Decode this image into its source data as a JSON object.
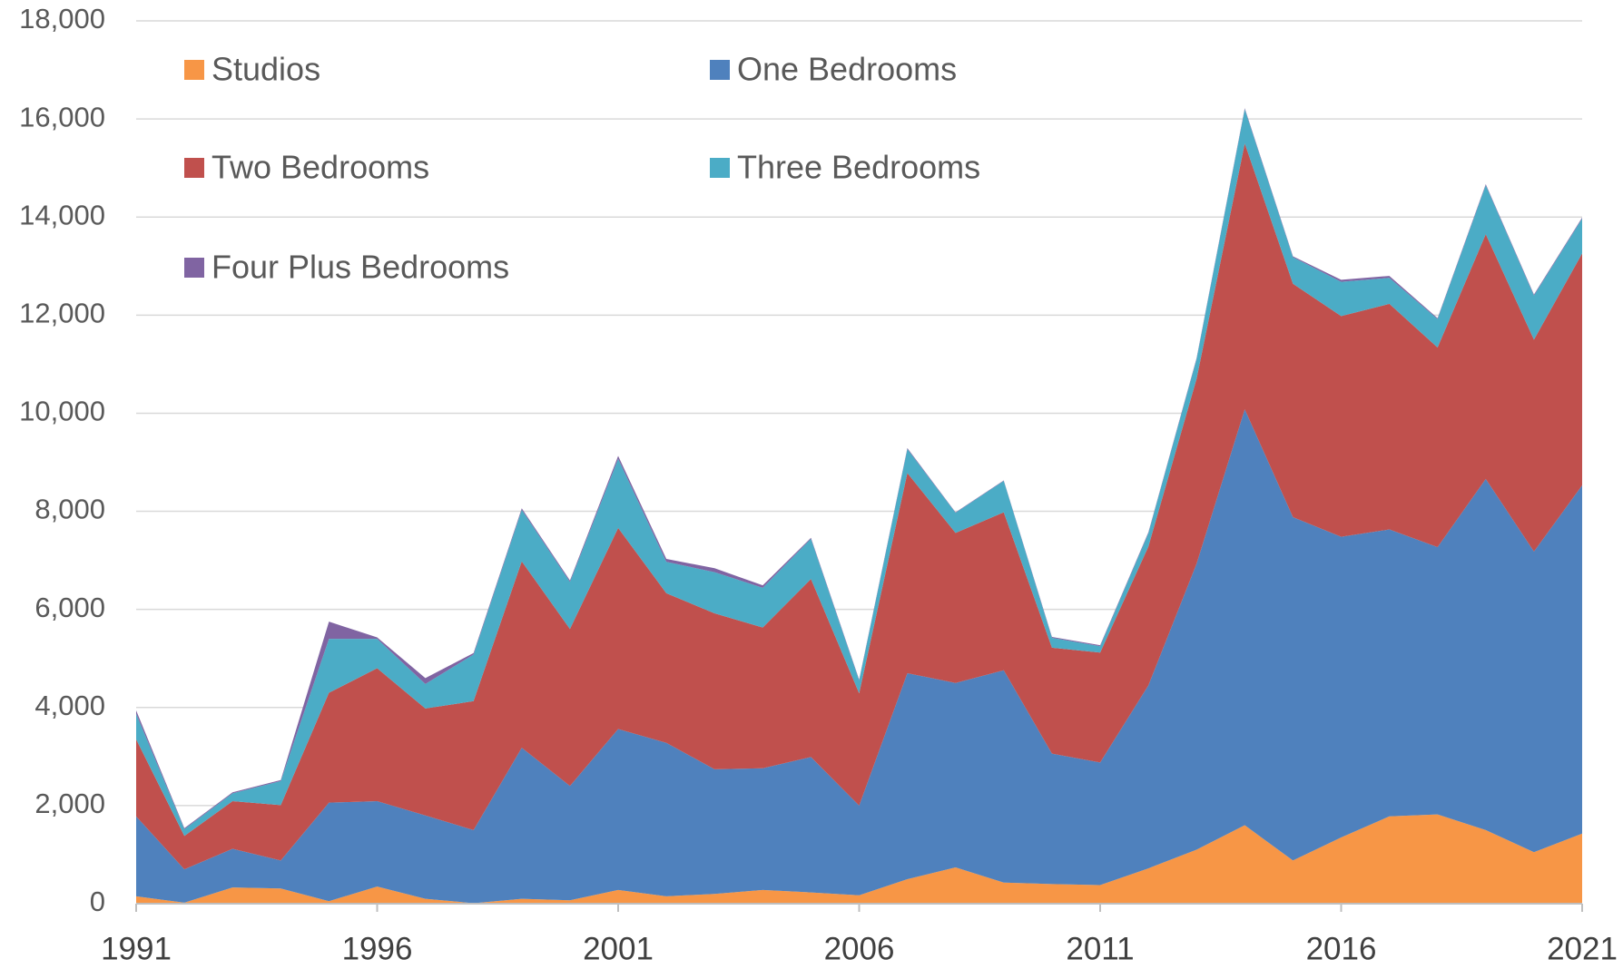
{
  "chart_data": {
    "type": "stacked_area",
    "x": [
      1991,
      1992,
      1993,
      1994,
      1995,
      1996,
      1997,
      1998,
      1999,
      2000,
      2001,
      2002,
      2003,
      2004,
      2005,
      2006,
      2007,
      2008,
      2009,
      2010,
      2011,
      2012,
      2013,
      2014,
      2015,
      2016,
      2017,
      2018,
      2019,
      2020,
      2021
    ],
    "xlim": [
      1991,
      2021
    ],
    "xticks": [
      1991,
      1996,
      2001,
      2006,
      2011,
      2016,
      2021
    ],
    "ylim": [
      0,
      18000
    ],
    "yticks": [
      0,
      {
        "value": 2000,
        "label": "2,000"
      },
      {
        "value": 4000,
        "label": "4,000"
      },
      {
        "value": 6000,
        "label": "6,000"
      },
      {
        "value": 8000,
        "label": "8,000"
      },
      {
        "value": 10000,
        "label": "10,000"
      },
      {
        "value": 12000,
        "label": "12,000"
      },
      {
        "value": 14000,
        "label": "14,000"
      },
      {
        "value": 16000,
        "label": "16,000"
      },
      {
        "value": 18000,
        "label": "18,000"
      }
    ],
    "grid": true,
    "legend": "top-left",
    "series": [
      {
        "name": "Studios",
        "color": "#f79646",
        "values": [
          150,
          20,
          330,
          310,
          50,
          350,
          100,
          10,
          100,
          70,
          280,
          150,
          200,
          280,
          230,
          170,
          500,
          740,
          430,
          400,
          380,
          720,
          1100,
          1600,
          880,
          1350,
          1780,
          1820,
          1500,
          1050,
          1430
        ]
      },
      {
        "name": "One Bedrooms",
        "color": "#4f81bd",
        "values": [
          1630,
          680,
          790,
          570,
          2010,
          1740,
          1700,
          1490,
          3080,
          2330,
          3280,
          3130,
          2540,
          2480,
          2760,
          1830,
          4200,
          3760,
          4330,
          2660,
          2500,
          3730,
          5830,
          8480,
          7000,
          6130,
          5850,
          5450,
          7160,
          6130,
          7100
        ]
      },
      {
        "name": "Two Bedrooms",
        "color": "#c0504d",
        "values": [
          1570,
          680,
          970,
          1130,
          2240,
          2710,
          2180,
          2630,
          3800,
          3200,
          4100,
          3050,
          3180,
          2870,
          3630,
          2290,
          4080,
          3060,
          3220,
          2160,
          2240,
          2830,
          3770,
          5420,
          4760,
          4500,
          4600,
          4070,
          4990,
          4320,
          4730
        ]
      },
      {
        "name": "Three Bedrooms",
        "color": "#4bacc6",
        "values": [
          520,
          140,
          160,
          490,
          1100,
          600,
          500,
          950,
          1050,
          960,
          1410,
          640,
          840,
          810,
          820,
          260,
          490,
          410,
          640,
          200,
          130,
          270,
          400,
          700,
          540,
          700,
          530,
          580,
          1000,
          900,
          710
        ]
      },
      {
        "name": "Four Plus Bedrooms",
        "color": "#8064a2",
        "values": [
          70,
          20,
          20,
          20,
          350,
          30,
          120,
          30,
          30,
          30,
          60,
          60,
          80,
          50,
          20,
          20,
          20,
          10,
          10,
          20,
          20,
          20,
          20,
          20,
          20,
          40,
          40,
          20,
          20,
          20,
          20
        ]
      }
    ]
  }
}
